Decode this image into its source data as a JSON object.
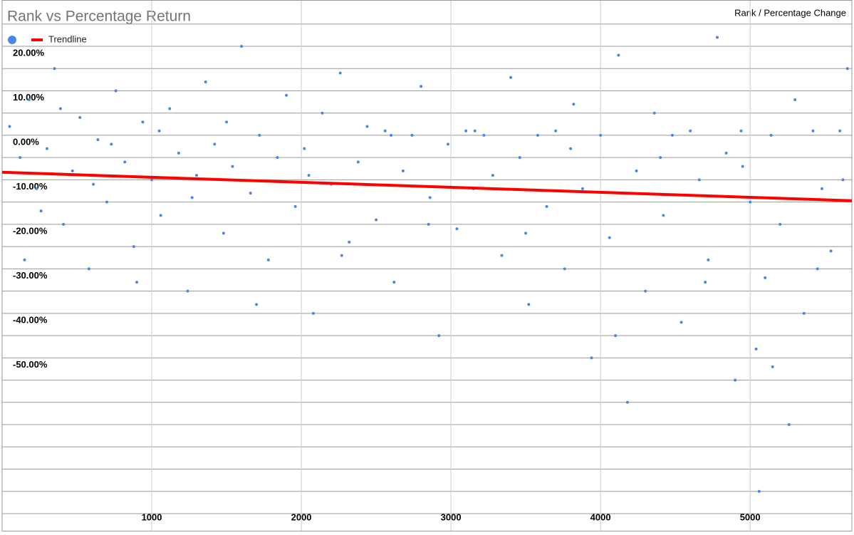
{
  "chart_data": {
    "type": "scatter",
    "title": "Rank vs Percentage Return",
    "subtitle": "Rank / Percentage Change",
    "series": [
      {
        "color": "#4a86e8",
        "x": [
          50,
          120,
          180,
          230,
          300,
          350,
          410,
          470,
          520,
          580,
          640,
          700,
          760,
          820,
          880,
          940,
          1000,
          1060,
          1120,
          1180,
          1240,
          1300,
          1360,
          1420,
          1480,
          1540,
          1600,
          1660,
          1720,
          1780,
          1840,
          1900,
          1960,
          2020,
          2080,
          2140,
          2200,
          2260,
          2320,
          2380,
          2440,
          2500,
          2560,
          2620,
          2680,
          2740,
          2800,
          2860,
          2920,
          2980,
          3040,
          3100,
          3160,
          3220,
          3280,
          3340,
          3400,
          3460,
          3520,
          3580,
          3640,
          3700,
          3760,
          3820,
          3880,
          3940,
          4000,
          4060,
          4120,
          4180,
          4240,
          4300,
          4360,
          4420,
          4480,
          4540,
          4600,
          4660,
          4720,
          4780,
          4840,
          4900,
          4940,
          5000,
          5040,
          5060,
          5100,
          5140,
          5200,
          5260,
          5300,
          5360,
          5420,
          5480,
          5540,
          5600,
          5650,
          150,
          260,
          390,
          610,
          730,
          900,
          1050,
          1270,
          1500,
          1700,
          2050,
          2270,
          2600,
          2850,
          3150,
          3500,
          3800,
          4100,
          4400,
          4700,
          4950,
          5150,
          5450,
          5620
        ],
        "values": [
          2,
          -5,
          8,
          -12,
          -3,
          15,
          -20,
          -8,
          4,
          -30,
          -1,
          -15,
          10,
          -6,
          -25,
          3,
          -10,
          -18,
          6,
          -4,
          -35,
          -9,
          12,
          -2,
          -22,
          -7,
          20,
          -13,
          0,
          -28,
          -5,
          9,
          -16,
          -3,
          -40,
          5,
          -11,
          14,
          -24,
          -6,
          2,
          -19,
          1,
          -33,
          -8,
          0,
          11,
          -14,
          -45,
          -2,
          -21,
          1,
          1,
          0,
          -9,
          -27,
          13,
          -5,
          -38,
          0,
          -16,
          1,
          -30,
          7,
          -12,
          -50,
          0,
          -23,
          18,
          -60,
          -8,
          -35,
          5,
          -18,
          0,
          -42,
          1,
          -10,
          -28,
          22,
          -4,
          -55,
          1,
          -15,
          -48,
          -80,
          -32,
          0,
          -20,
          -65,
          8,
          -40,
          1,
          -12,
          -26,
          1,
          15,
          -28,
          -17,
          6,
          -11,
          -2,
          -33,
          1,
          -14,
          3,
          -38,
          -9,
          -27,
          0,
          -20,
          -12,
          -22,
          -3,
          -45,
          -5,
          -33,
          -7,
          -52,
          -30,
          -10
        ]
      },
      {
        "name": "Trendline",
        "color": "#ff0000",
        "x": [
          0,
          5680
        ],
        "values": [
          -8.3,
          -14.7
        ]
      }
    ],
    "xlim": [
      0,
      5680
    ],
    "xticks": [
      1000,
      2000,
      3000,
      4000,
      5000
    ],
    "ylim": [
      -89,
      30.4
    ],
    "yticks": [
      {
        "value": 20,
        "label": "20.00%"
      },
      {
        "value": 10,
        "label": "10.00%"
      },
      {
        "value": 0,
        "label": "0.00%"
      },
      {
        "value": -10,
        "label": "-10.00%"
      },
      {
        "value": -20,
        "label": "-20.00%"
      },
      {
        "value": -30,
        "label": "-30.00%"
      },
      {
        "value": -40,
        "label": "-40.00%"
      },
      {
        "value": -50,
        "label": "-50.00%"
      }
    ],
    "minor_yticks": [
      25,
      15,
      5,
      -5,
      -15,
      -25,
      -35,
      -45,
      -55,
      -60,
      -65,
      -70,
      -75,
      -80,
      -85
    ],
    "grid": true,
    "legend": "top-left"
  }
}
